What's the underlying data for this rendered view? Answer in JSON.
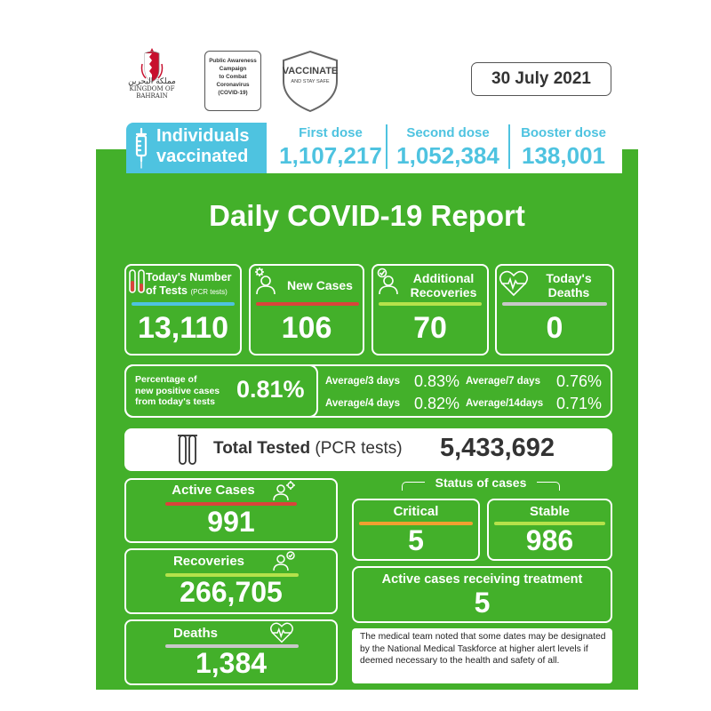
{
  "header": {
    "logo_text": "KINGDOM OF BAHRAIN",
    "logo_arabic": "مملكة البحرين",
    "campaign_lines": [
      "Public Awareness",
      "Campaign",
      "to Combat",
      "Coronavirus",
      "(COVID-19)"
    ],
    "vaccinate_title": "VACCINATE",
    "vaccinate_sub": "AND STAY SAFE",
    "date": "30 July 2021"
  },
  "vaccination": {
    "label_line1": "Individuals",
    "label_line2": "vaccinated",
    "doses": [
      {
        "label": "First dose",
        "value": "1,107,217"
      },
      {
        "label": "Second dose",
        "value": "1,052,384"
      },
      {
        "label": "Booster dose",
        "value": "138,001"
      }
    ]
  },
  "report_title": "Daily COVID-19 Report",
  "daily": {
    "tests_title_1": "Today's Number",
    "tests_title_2": "of Tests",
    "tests_title_small": "(PCR tests)",
    "tests_value": "13,110",
    "new_cases_title": "New Cases",
    "new_cases_value": "106",
    "recoveries_title_1": "Additional",
    "recoveries_title_2": "Recoveries",
    "recoveries_value": "70",
    "deaths_title_1": "Today's",
    "deaths_title_2": "Deaths",
    "deaths_value": "0"
  },
  "positivity": {
    "label_1": "Percentage of",
    "label_2": "new positive cases",
    "label_3": "from today's tests",
    "value": "0.81%",
    "avg3_label": "Average/3 days",
    "avg3_value": "0.83%",
    "avg7_label": "Average/7 days",
    "avg7_value": "0.76%",
    "avg4_label": "Average/4 days",
    "avg4_value": "0.82%",
    "avg14_label": "Average/14days",
    "avg14_value": "0.71%"
  },
  "total_tested": {
    "label_bold": "Total Tested",
    "label_rest": "(PCR tests)",
    "value": "5,433,692"
  },
  "totals": {
    "active_title": "Active Cases",
    "active_value": "991",
    "recoveries_title": "Recoveries",
    "recoveries_value": "266,705",
    "deaths_title": "Deaths",
    "deaths_value": "1,384"
  },
  "status": {
    "heading": "Status of cases",
    "critical_title": "Critical",
    "critical_value": "5",
    "stable_title": "Stable",
    "stable_value": "986",
    "treatment_title": "Active cases receiving treatment",
    "treatment_value": "5"
  },
  "note": "The medical team noted that some dates may be designated by the National Medical Taskforce at higher alert levels if deemed necessary to the health and safety of all.",
  "colors": {
    "green": "#43b02a",
    "cyan": "#4ec3e0",
    "red": "#d9443a",
    "light_green": "#b5e24a",
    "grey": "#c8c8c8",
    "orange": "#f0a030",
    "blue_line": "#4ec3e0"
  }
}
